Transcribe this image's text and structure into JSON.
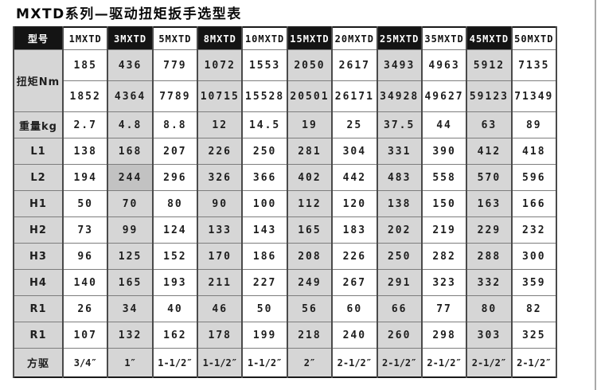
{
  "page": {
    "title": "MXTD系列—驱动扭矩扳手选型表"
  },
  "colors": {
    "header_bg": "#141414",
    "header_text": "#ffffff",
    "shaded_cell": "#d6d6d6",
    "highlight_cell": "#c2c2c2",
    "white_cell": "#ffffff",
    "outer_border": "#1a1a1a",
    "grid_line": "#7d7d7d"
  },
  "table": {
    "corner_label": "型号",
    "models": [
      "1MXTD",
      "3MXTD",
      "5MXTD",
      "8MXTD",
      "10MXTD",
      "15MXTD",
      "20MXTD",
      "25MXTD",
      "35MXTD",
      "45MXTD",
      "50MXTD"
    ],
    "torque_row": {
      "label": "扭矩Nm",
      "min_values": [
        "185",
        "436",
        "779",
        "1072",
        "1553",
        "2050",
        "2617",
        "3493",
        "4963",
        "5912",
        "7135"
      ],
      "max_values": [
        "1852",
        "4364",
        "7789",
        "10715",
        "15528",
        "20501",
        "26171",
        "34928",
        "49627",
        "59123",
        "71349"
      ]
    },
    "rows": [
      {
        "label": "重量kg",
        "cells": [
          "2.7",
          "4.8",
          "8.8",
          "12",
          "14.5",
          "19",
          "25",
          "37.5",
          "44",
          "63",
          "89"
        ]
      },
      {
        "label": "L1",
        "cells": [
          "138",
          "168",
          "207",
          "226",
          "250",
          "281",
          "304",
          "331",
          "390",
          "412",
          "418"
        ]
      },
      {
        "label": "L2",
        "cells": [
          "194",
          "244",
          "296",
          "326",
          "366",
          "402",
          "442",
          "483",
          "558",
          "570",
          "596"
        ]
      },
      {
        "label": "H1",
        "cells": [
          "50",
          "70",
          "80",
          "90",
          "100",
          "112",
          "120",
          "138",
          "150",
          "163",
          "166"
        ]
      },
      {
        "label": "H2",
        "cells": [
          "73",
          "99",
          "124",
          "133",
          "143",
          "165",
          "183",
          "202",
          "219",
          "229",
          "232"
        ]
      },
      {
        "label": "H3",
        "cells": [
          "96",
          "125",
          "152",
          "170",
          "186",
          "208",
          "226",
          "250",
          "282",
          "288",
          "300"
        ]
      },
      {
        "label": "H4",
        "cells": [
          "140",
          "165",
          "193",
          "211",
          "227",
          "249",
          "267",
          "291",
          "323",
          "332",
          "359"
        ]
      },
      {
        "label": "R1",
        "cells": [
          "26",
          "34",
          "40",
          "46",
          "50",
          "56",
          "60",
          "66",
          "77",
          "80",
          "82"
        ]
      },
      {
        "label": "R1",
        "cells": [
          "107",
          "132",
          "162",
          "178",
          "199",
          "218",
          "240",
          "260",
          "298",
          "303",
          "325"
        ]
      },
      {
        "label": "方驱",
        "cells": [
          "3/4″",
          "1″",
          "1-1/2″",
          "1-1/2″",
          "1-1/2″",
          "2″",
          "2-1/2″",
          "2-1/2″",
          "2-1/2″",
          "2-1/2″",
          "2-1/2″"
        ]
      }
    ],
    "highlight": {
      "row_index": 2,
      "col_index": 1
    }
  }
}
